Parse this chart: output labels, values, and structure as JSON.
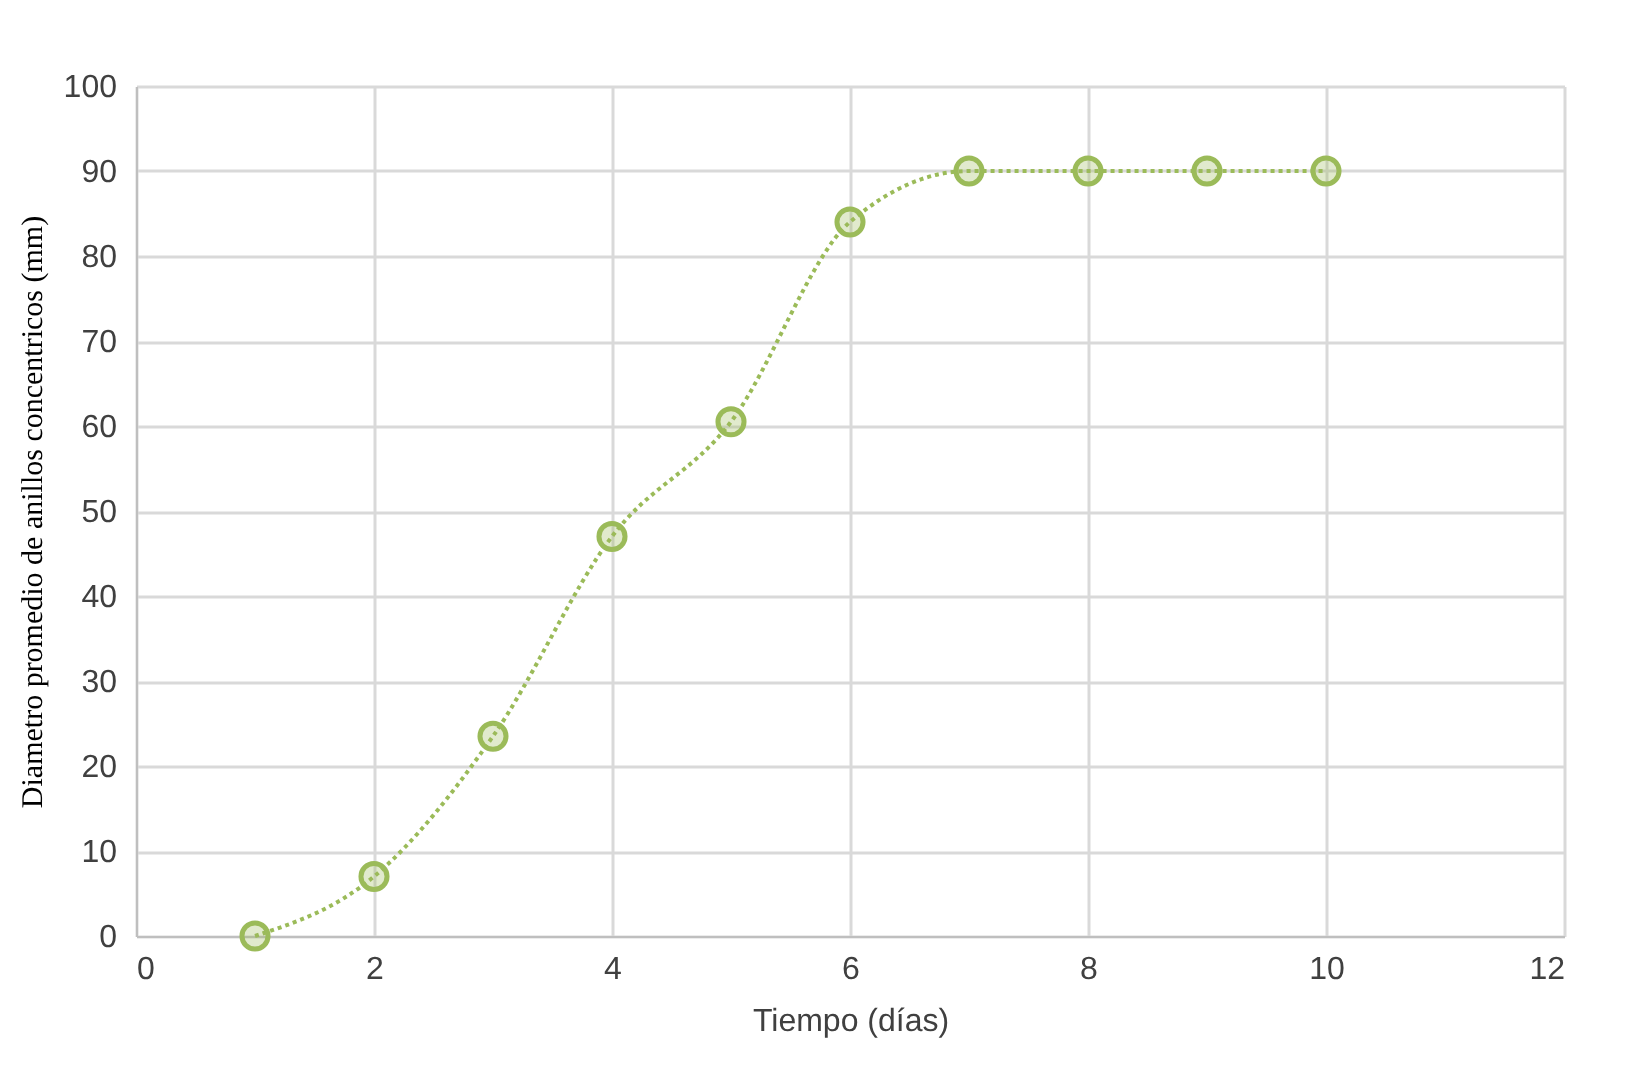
{
  "chart_data": {
    "type": "line",
    "xlabel": "Tiempo (días)",
    "ylabel": "Diametro promedio  de anillos concentricos (mm)",
    "x": [
      1,
      2,
      3,
      4,
      5,
      6,
      7,
      8,
      9,
      10
    ],
    "series": [
      {
        "color": "#9bbb59",
        "values": [
          0,
          7,
          23.5,
          47,
          60.5,
          84,
          90,
          90,
          90,
          90
        ]
      }
    ],
    "xlim": [
      0,
      12
    ],
    "xticks": [
      0,
      2,
      4,
      6,
      8,
      10,
      12
    ],
    "ylim": [
      0,
      100
    ],
    "yticks": [
      0,
      10,
      20,
      30,
      40,
      50,
      60,
      70,
      80,
      90,
      100
    ],
    "grid": true,
    "marker": "circle",
    "line_style": "dotted"
  }
}
